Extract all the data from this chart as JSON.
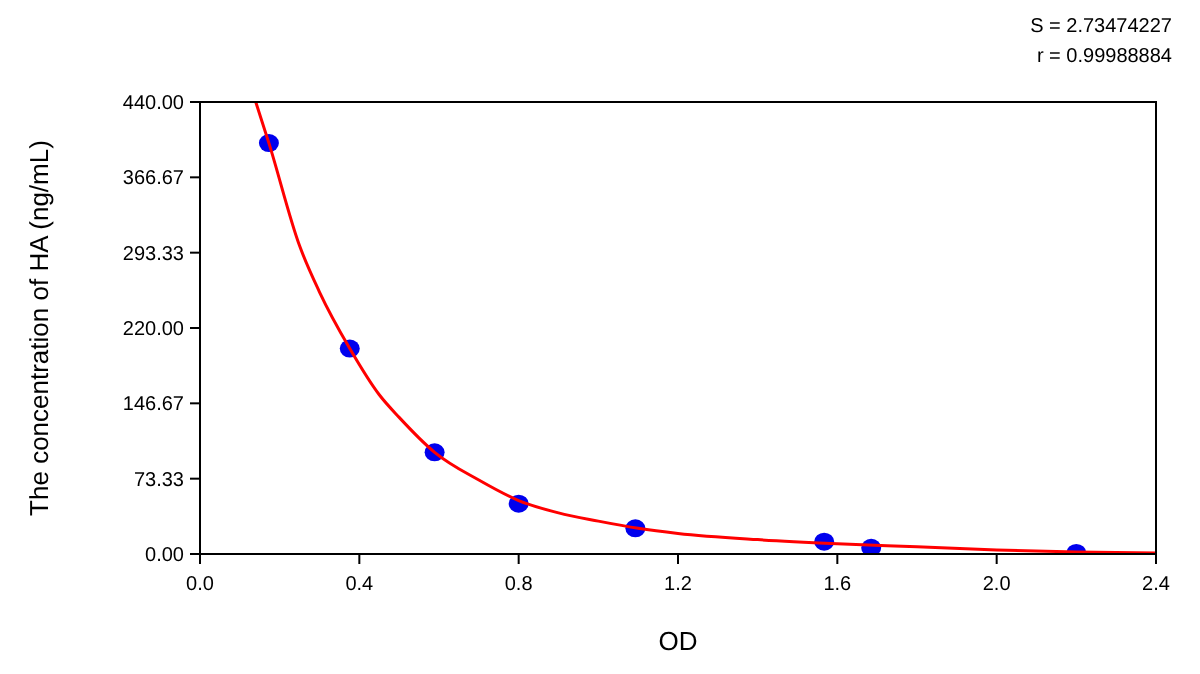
{
  "chart_data": {
    "type": "scatter",
    "xlabel": "OD",
    "ylabel": "The concentration of HA (ng/mL)",
    "annotations": [
      "S = 2.73474227",
      "r = 0.99988884"
    ],
    "xlim": [
      0,
      2.4
    ],
    "xticks": [
      {
        "value": 0,
        "label": "0.0"
      },
      {
        "value": 0.4,
        "label": "0.4"
      },
      {
        "value": 0.8,
        "label": "0.8"
      },
      {
        "value": 1.2,
        "label": "1.2"
      },
      {
        "value": 1.6,
        "label": "1.6"
      },
      {
        "value": 2,
        "label": "2.0"
      },
      {
        "value": 2.4,
        "label": "2.4"
      }
    ],
    "ylim": [
      0,
      440
    ],
    "yticks": [
      {
        "value": 0,
        "label": "0.00"
      },
      {
        "value": 73.33,
        "label": "73.33"
      },
      {
        "value": 146.67,
        "label": "146.67"
      },
      {
        "value": 220,
        "label": "220.00"
      },
      {
        "value": 293.33,
        "label": "293.33"
      },
      {
        "value": 366.67,
        "label": "366.67"
      },
      {
        "value": 440,
        "label": "440.00"
      }
    ],
    "grid": false,
    "series": [
      {
        "color": "#0000ee",
        "marker": "circle",
        "x": [
          0.173,
          0.376,
          0.589,
          0.8,
          1.093,
          1.567,
          1.685,
          2.2
        ],
        "values": [
          400,
          200,
          99,
          49,
          25,
          12,
          6,
          1
        ]
      },
      {
        "type": "line",
        "color": "#ff0000",
        "marker": "none",
        "x": [
          0.14,
          0.173,
          0.25,
          0.3,
          0.376,
          0.45,
          0.5,
          0.589,
          0.7,
          0.8,
          0.9,
          1.0,
          1.1,
          1.2,
          1.4,
          1.6,
          1.8,
          2.0,
          2.2,
          2.4
        ],
        "values": [
          440,
          400,
          300,
          255,
          200,
          155,
          133,
          99,
          72,
          52,
          40,
          32,
          25,
          20,
          14,
          10,
          7,
          4,
          2,
          1
        ]
      }
    ]
  }
}
